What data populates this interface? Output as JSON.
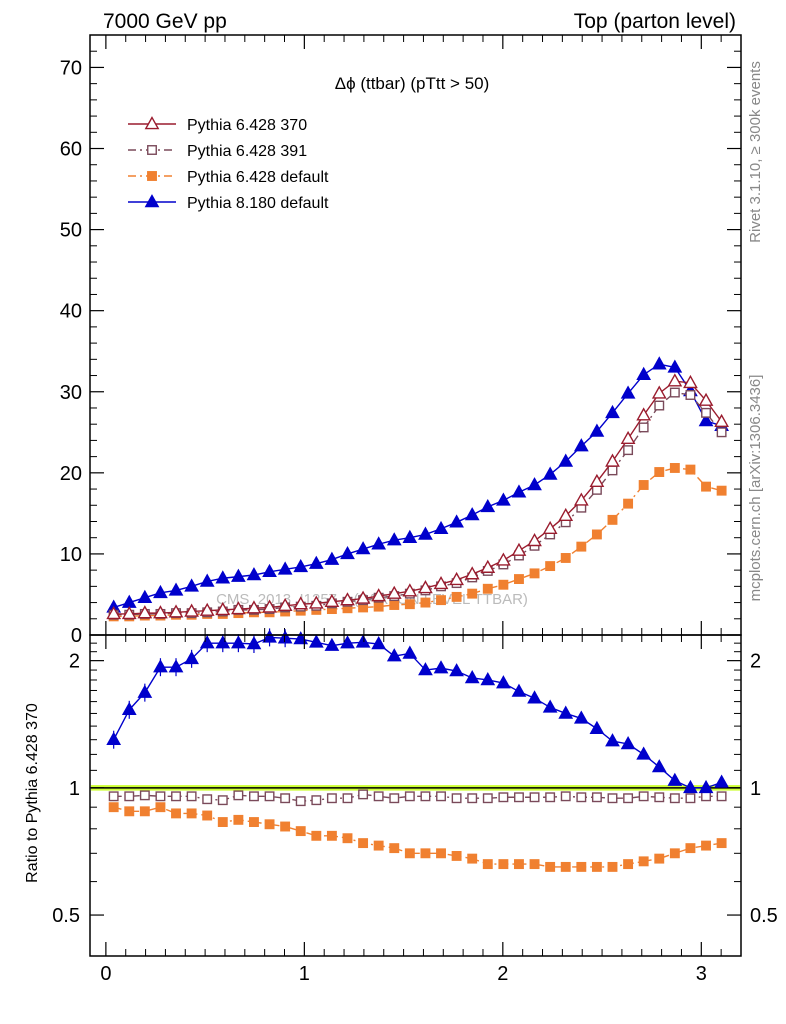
{
  "header": {
    "left": "7000 GeV pp",
    "right": "Top (parton level)"
  },
  "side": {
    "rivet": "Rivet 3.1.10, ≥ 300k events",
    "mcplots": "mcplots.cern.ch [arXiv:1306.3436]"
  },
  "chart_data": [
    {
      "type": "line",
      "title": "Δϕ (ttbar) (pTtt > 50)",
      "watermark": "CMS_2013_I1257... (PARTON LEVEL TTBAR)",
      "xlabel": "",
      "ylabel": "",
      "xlim": [
        -0.08,
        3.2
      ],
      "ylim": [
        0,
        74
      ],
      "yticks": [
        0,
        10,
        20,
        30,
        40,
        50,
        60,
        70
      ],
      "legend_position": "top-left",
      "grid": false,
      "x": [
        0.0393,
        0.1178,
        0.1963,
        0.2749,
        0.3534,
        0.432,
        0.5105,
        0.589,
        0.6676,
        0.7461,
        0.8247,
        0.9032,
        0.9817,
        1.0603,
        1.1388,
        1.2174,
        1.2959,
        1.3744,
        1.453,
        1.5315,
        1.6101,
        1.6886,
        1.7671,
        1.8457,
        1.9242,
        2.0028,
        2.0813,
        2.1598,
        2.2384,
        2.3169,
        2.3955,
        2.474,
        2.5525,
        2.6311,
        2.7096,
        2.7882,
        2.8667,
        2.9452,
        3.0238,
        3.1023
      ],
      "series": [
        {
          "name": "Pythia 6.428 370",
          "color": "#9a1c2e",
          "marker": "open-triangle",
          "line": "solid",
          "values": [
            2.6,
            2.6,
            2.7,
            2.7,
            2.8,
            2.9,
            3.0,
            3.1,
            3.2,
            3.3,
            3.4,
            3.6,
            3.8,
            3.9,
            4.1,
            4.3,
            4.5,
            4.8,
            5.1,
            5.4,
            5.8,
            6.3,
            6.8,
            7.5,
            8.3,
            9.2,
            10.4,
            11.6,
            13.1,
            14.7,
            16.6,
            18.9,
            21.4,
            24.2,
            27.1,
            29.8,
            31.3,
            31.1,
            28.9,
            26.3
          ]
        },
        {
          "name": "Pythia 6.428 391",
          "color": "#7a4a5a",
          "marker": "open-square",
          "line": "dashdot",
          "values": [
            2.5,
            2.5,
            2.6,
            2.6,
            2.7,
            2.7,
            2.8,
            2.9,
            3.1,
            3.1,
            3.2,
            3.4,
            3.5,
            3.6,
            3.9,
            4.1,
            4.3,
            4.6,
            4.8,
            5.1,
            5.5,
            6.0,
            6.4,
            7.1,
            7.9,
            8.7,
            9.8,
            11.0,
            12.4,
            13.9,
            15.7,
            17.9,
            20.3,
            22.8,
            25.6,
            28.3,
            29.9,
            29.6,
            27.4,
            25.0
          ]
        },
        {
          "name": "Pythia 6.428 default",
          "color": "#f08030",
          "marker": "filled-square",
          "line": "dashdot",
          "values": [
            2.3,
            2.3,
            2.4,
            2.4,
            2.5,
            2.5,
            2.6,
            2.6,
            2.7,
            2.8,
            2.8,
            2.9,
            3.0,
            3.1,
            3.2,
            3.3,
            3.4,
            3.5,
            3.7,
            3.8,
            4.0,
            4.3,
            4.7,
            5.1,
            5.7,
            6.2,
            6.9,
            7.6,
            8.5,
            9.5,
            10.9,
            12.4,
            14.2,
            16.2,
            18.5,
            20.1,
            20.6,
            20.4,
            18.3,
            17.8
          ]
        },
        {
          "name": "Pythia 8.180 default",
          "color": "#0000cc",
          "marker": "filled-triangle",
          "line": "solid",
          "values": [
            3.4,
            4.0,
            4.6,
            5.2,
            5.5,
            6.0,
            6.6,
            7.0,
            7.2,
            7.4,
            7.8,
            8.1,
            8.4,
            8.8,
            9.3,
            10.0,
            10.6,
            11.2,
            11.7,
            12.0,
            12.4,
            13.1,
            13.9,
            14.8,
            15.8,
            16.6,
            17.6,
            18.5,
            19.8,
            21.4,
            23.3,
            25.1,
            27.4,
            29.8,
            32.1,
            33.4,
            33.0,
            30.1,
            26.4,
            25.8
          ]
        }
      ]
    },
    {
      "type": "line",
      "ylabel": "Ratio to Pythia 6.428 370",
      "xlim": [
        -0.08,
        3.2
      ],
      "ylim": [
        0.4,
        2.3
      ],
      "xticks": [
        "0",
        "1",
        "2",
        "3"
      ],
      "yticks": [
        "0.5",
        "1",
        "2"
      ],
      "reference_band_color": "#ccff33",
      "x": [
        0.0393,
        0.1178,
        0.1963,
        0.2749,
        0.3534,
        0.432,
        0.5105,
        0.589,
        0.6676,
        0.7461,
        0.8247,
        0.9032,
        0.9817,
        1.0603,
        1.1388,
        1.2174,
        1.2959,
        1.3744,
        1.453,
        1.5315,
        1.6101,
        1.6886,
        1.7671,
        1.8457,
        1.9242,
        2.0028,
        2.0813,
        2.1598,
        2.2384,
        2.3169,
        2.3955,
        2.474,
        2.5525,
        2.6311,
        2.7096,
        2.7882,
        2.8667,
        2.9452,
        3.0238,
        3.1023
      ],
      "series": [
        {
          "name": "Pythia 6.428 391",
          "color": "#7a4a5a",
          "marker": "open-square",
          "line": "dashdot",
          "values": [
            0.955,
            0.955,
            0.96,
            0.955,
            0.955,
            0.955,
            0.94,
            0.935,
            0.96,
            0.955,
            0.955,
            0.945,
            0.93,
            0.935,
            0.945,
            0.945,
            0.965,
            0.955,
            0.945,
            0.955,
            0.955,
            0.955,
            0.945,
            0.945,
            0.945,
            0.95,
            0.95,
            0.95,
            0.95,
            0.955,
            0.95,
            0.95,
            0.945,
            0.945,
            0.955,
            0.95,
            0.945,
            0.945,
            0.955,
            0.955
          ]
        },
        {
          "name": "Pythia 6.428 default",
          "color": "#f08030",
          "marker": "filled-square",
          "line": "dashdot",
          "values": [
            0.9,
            0.88,
            0.88,
            0.9,
            0.87,
            0.87,
            0.86,
            0.83,
            0.84,
            0.83,
            0.82,
            0.81,
            0.79,
            0.77,
            0.77,
            0.76,
            0.74,
            0.73,
            0.72,
            0.7,
            0.7,
            0.7,
            0.69,
            0.68,
            0.66,
            0.66,
            0.66,
            0.66,
            0.65,
            0.65,
            0.65,
            0.65,
            0.65,
            0.66,
            0.67,
            0.68,
            0.7,
            0.72,
            0.73,
            0.74
          ]
        },
        {
          "name": "Pythia 8.180 default",
          "color": "#0000cc",
          "marker": "filled-triangle",
          "line": "solid",
          "values": [
            1.3,
            1.53,
            1.68,
            1.93,
            1.93,
            2.02,
            2.2,
            2.2,
            2.2,
            2.19,
            2.27,
            2.26,
            2.25,
            2.21,
            2.17,
            2.2,
            2.21,
            2.19,
            2.05,
            2.08,
            1.9,
            1.92,
            1.89,
            1.82,
            1.8,
            1.77,
            1.69,
            1.63,
            1.55,
            1.5,
            1.46,
            1.38,
            1.29,
            1.27,
            1.2,
            1.12,
            1.04,
            1.0,
            1.0,
            1.03
          ]
        }
      ]
    }
  ]
}
